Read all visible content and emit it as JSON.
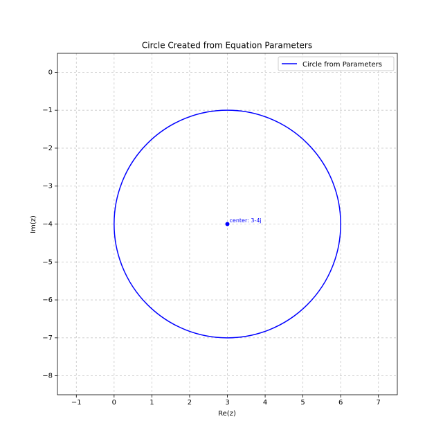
{
  "chart_data": {
    "type": "circle",
    "title": "Circle Created from Equation Parameters",
    "xlabel": "Re(z)",
    "ylabel": "Im(z)",
    "center": [
      3,
      -4
    ],
    "radius": 3,
    "legend_label": "Circle from Parameters",
    "color": "#0000ff",
    "annotation": "center: 3-4j",
    "legend": "upper right",
    "grid": true,
    "xlim": [
      -1.5,
      7.5
    ],
    "ylim": [
      -8.5,
      0.5
    ],
    "xticks": [
      {
        "value": -1,
        "label": "−1"
      },
      0,
      1,
      2,
      3,
      4,
      5,
      6,
      7
    ],
    "yticks": [
      0,
      {
        "value": -1,
        "label": "−1"
      },
      {
        "value": -2,
        "label": "−2"
      },
      {
        "value": -3,
        "label": "−3"
      },
      {
        "value": -4,
        "label": "−4"
      },
      {
        "value": -5,
        "label": "−5"
      },
      {
        "value": -6,
        "label": "−6"
      },
      {
        "value": -7,
        "label": "−7"
      },
      {
        "value": -8,
        "label": "−8"
      }
    ]
  }
}
